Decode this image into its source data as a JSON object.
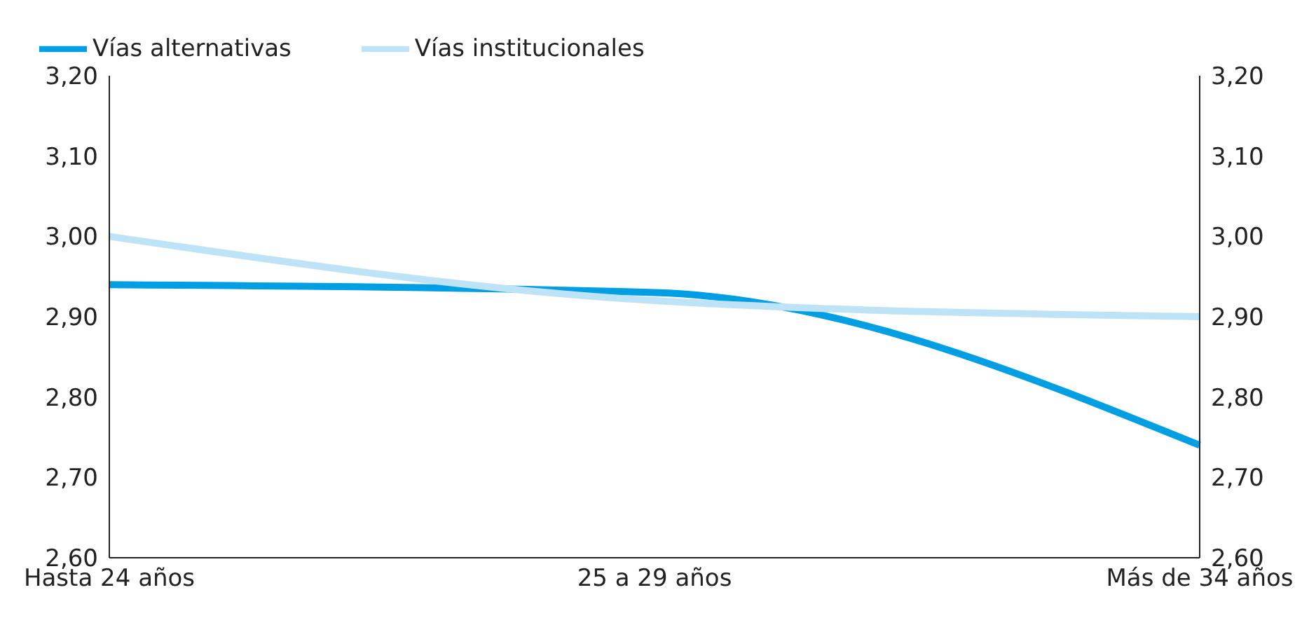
{
  "chart_data": {
    "type": "line",
    "categories": [
      "Hasta 24 años",
      "25 a 29 años",
      "Más de 34 años"
    ],
    "series": [
      {
        "name": "Vías alternativas",
        "color": "#009fe3",
        "values": [
          2.94,
          2.93,
          2.74
        ]
      },
      {
        "name": "Vías institucionales",
        "color": "#bfe3f6",
        "values": [
          3.0,
          2.92,
          2.9
        ]
      }
    ],
    "ylim": [
      2.6,
      3.2
    ],
    "yticks": [
      {
        "value": 2.6,
        "label": "2,60"
      },
      {
        "value": 2.7,
        "label": "2,70"
      },
      {
        "value": 2.8,
        "label": "2,80"
      },
      {
        "value": 2.9,
        "label": "2,90"
      },
      {
        "value": 3.0,
        "label": "3,00"
      },
      {
        "value": 3.1,
        "label": "3,10"
      },
      {
        "value": 3.2,
        "label": "3,20"
      }
    ],
    "y2lim": [
      2.6,
      3.2
    ],
    "y2ticks": [
      {
        "value": 2.6,
        "label": "2,60"
      },
      {
        "value": 2.7,
        "label": "2,70"
      },
      {
        "value": 2.8,
        "label": "2,80"
      },
      {
        "value": 2.9,
        "label": "2,90"
      },
      {
        "value": 3.0,
        "label": "3,00"
      },
      {
        "value": 3.1,
        "label": "3,10"
      },
      {
        "value": 3.2,
        "label": "3,20"
      }
    ],
    "grid": false,
    "legend": "top left",
    "marker": "none",
    "line_style": "solid"
  }
}
